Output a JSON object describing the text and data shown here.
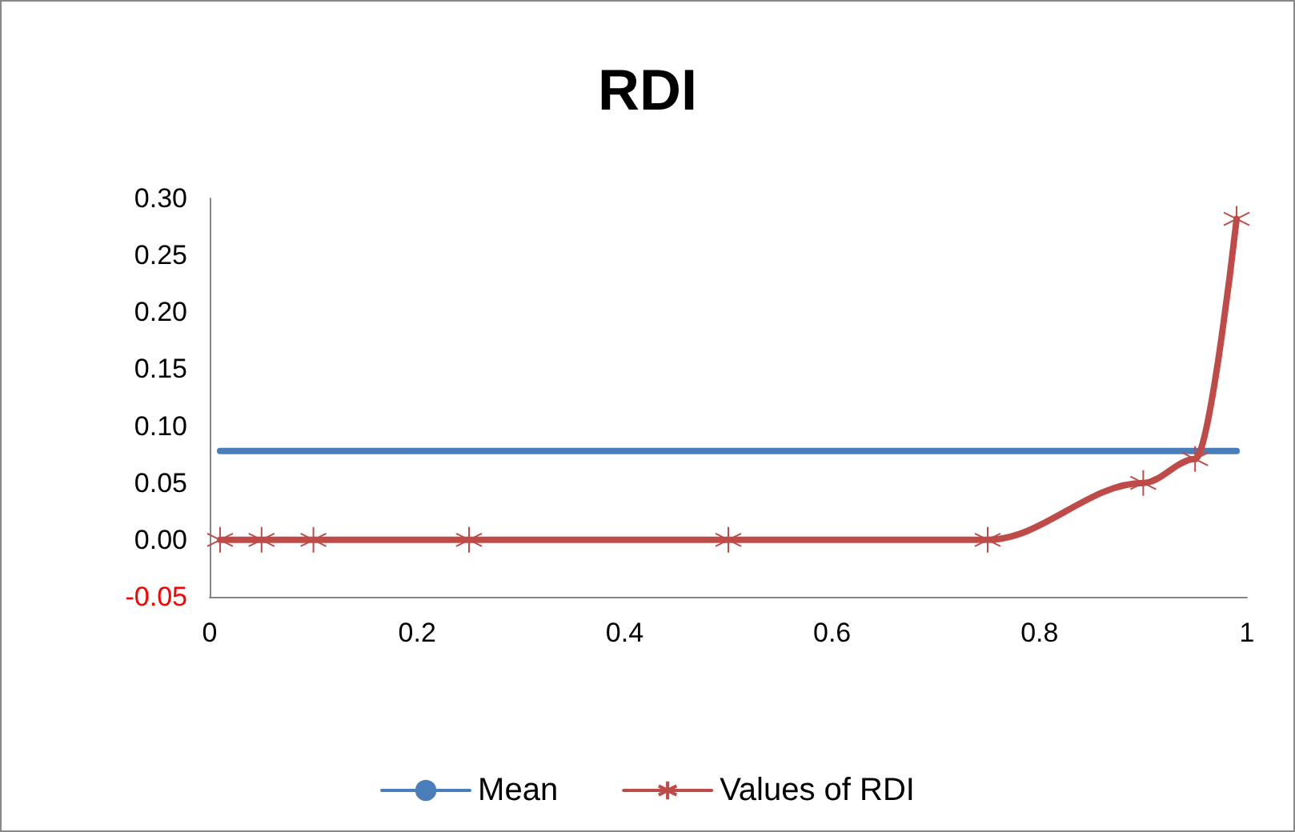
{
  "chart_data": {
    "type": "line",
    "title": "RDI",
    "legend": "bottom",
    "grid": false,
    "line_style": "solid",
    "xlim": [
      0,
      1
    ],
    "xticks": [
      0,
      0.2,
      0.4,
      0.6,
      0.8,
      1
    ],
    "ylim": [
      -0.05,
      0.3
    ],
    "yticks": [
      {
        "value": -0.05,
        "label": "-0.05"
      },
      {
        "value": 0,
        "label": "0.00"
      },
      {
        "value": 0.05,
        "label": "0.05"
      },
      {
        "value": 0.1,
        "label": "0.10"
      },
      {
        "value": 0.15,
        "label": "0.15"
      },
      {
        "value": 0.2,
        "label": "0.20"
      },
      {
        "value": 0.25,
        "label": "0.25"
      },
      {
        "value": 0.3,
        "label": "0.30"
      }
    ],
    "series": [
      {
        "name": "Mean",
        "color": "#4a7ebb",
        "marker": "none",
        "x": [
          0.01,
          0.99
        ],
        "values": [
          0.078,
          0.078
        ]
      },
      {
        "name": "Values of RDI",
        "color": "#be4b48",
        "marker": "cross",
        "x": [
          0.01,
          0.05,
          0.1,
          0.25,
          0.5,
          0.75,
          0.9,
          0.95,
          0.99
        ],
        "values": [
          0,
          0,
          0,
          0,
          0,
          0,
          0.05,
          0.071,
          0.282
        ]
      }
    ]
  }
}
